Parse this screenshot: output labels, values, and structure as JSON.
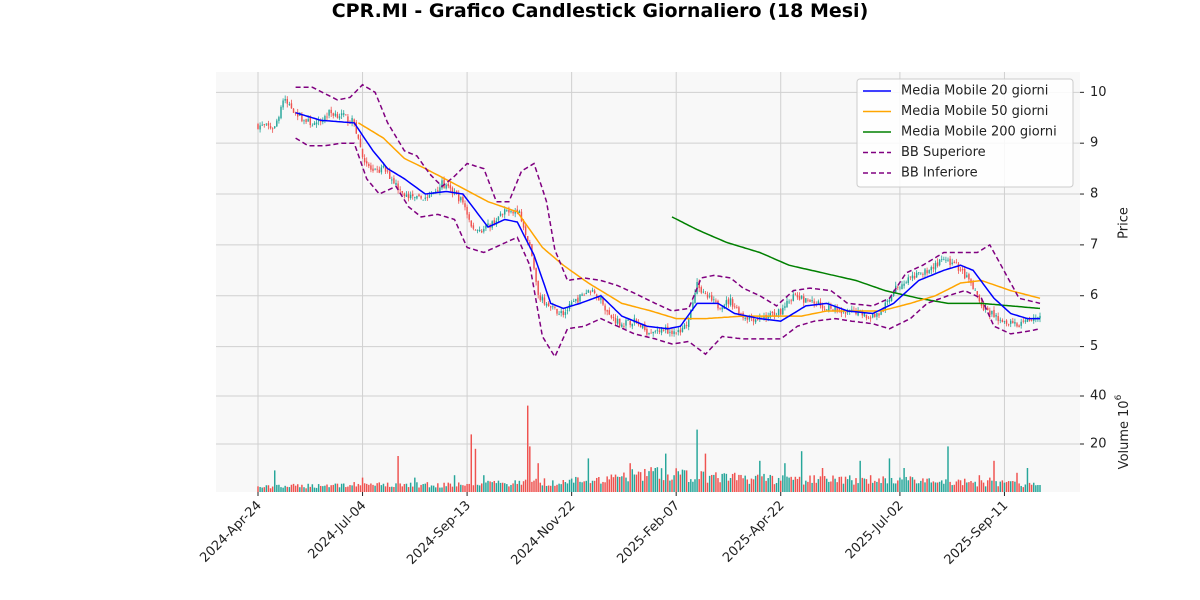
{
  "chart_data": {
    "type": "candlestick",
    "title": "CPR.MI - Grafico Candlestick Giornaliero (18 Mesi)",
    "price_axis": {
      "label": "Price",
      "ticks": [
        5,
        6,
        7,
        8,
        9,
        10
      ],
      "ylim": [
        4.5,
        10.4
      ]
    },
    "volume_axis": {
      "label": "Volume",
      "exponent": "6",
      "ticks": [
        20,
        40
      ],
      "ylim": [
        0,
        50
      ]
    },
    "x_ticks": [
      "2024-Apr-24",
      "2024-Jul-04",
      "2024-Sep-13",
      "2024-Nov-22",
      "2025-Feb-07",
      "2025-Apr-22",
      "2025-Jul-02",
      "2025-Sep-11"
    ],
    "x_tick_index": [
      0,
      50,
      100,
      150,
      200,
      250,
      307,
      357
    ],
    "n_bars": 375,
    "grid": true,
    "legend_position": "upper right",
    "colors": {
      "up": "#26a69a",
      "down": "#ef5350",
      "ma20": "#0000ff",
      "ma50": "#ffa500",
      "ma200": "#008000",
      "bb": "#800080"
    },
    "legend": [
      {
        "key": "ma20",
        "label": "Media Mobile 20 giorni",
        "style": "solid"
      },
      {
        "key": "ma50",
        "label": "Media Mobile 50 giorni",
        "style": "solid"
      },
      {
        "key": "ma200",
        "label": "Media Mobile 200 giorni",
        "style": "solid"
      },
      {
        "key": "bb_upper",
        "label": "BB Superiore",
        "style": "dashed"
      },
      {
        "key": "bb_lower",
        "label": "BB Inferiore",
        "style": "dashed"
      }
    ],
    "close_anchors": [
      [
        0,
        9.35
      ],
      [
        8,
        9.3
      ],
      [
        12,
        9.85
      ],
      [
        16,
        9.7
      ],
      [
        22,
        9.45
      ],
      [
        28,
        9.35
      ],
      [
        34,
        9.6
      ],
      [
        40,
        9.55
      ],
      [
        46,
        9.4
      ],
      [
        50,
        8.75
      ],
      [
        55,
        8.4
      ],
      [
        60,
        8.5
      ],
      [
        66,
        8.2
      ],
      [
        70,
        7.95
      ],
      [
        76,
        7.9
      ],
      [
        82,
        7.95
      ],
      [
        88,
        8.2
      ],
      [
        94,
        8.0
      ],
      [
        98,
        7.85
      ],
      [
        103,
        7.3
      ],
      [
        108,
        7.3
      ],
      [
        114,
        7.5
      ],
      [
        120,
        7.7
      ],
      [
        125,
        7.65
      ],
      [
        130,
        7.0
      ],
      [
        134,
        6.0
      ],
      [
        140,
        5.75
      ],
      [
        146,
        5.65
      ],
      [
        152,
        5.9
      ],
      [
        158,
        6.1
      ],
      [
        164,
        5.95
      ],
      [
        168,
        5.6
      ],
      [
        174,
        5.45
      ],
      [
        180,
        5.5
      ],
      [
        186,
        5.3
      ],
      [
        192,
        5.35
      ],
      [
        198,
        5.3
      ],
      [
        202,
        5.3
      ],
      [
        206,
        5.5
      ],
      [
        210,
        6.25
      ],
      [
        214,
        6.0
      ],
      [
        220,
        5.8
      ],
      [
        226,
        5.9
      ],
      [
        232,
        5.6
      ],
      [
        238,
        5.55
      ],
      [
        244,
        5.6
      ],
      [
        250,
        5.7
      ],
      [
        256,
        6.0
      ],
      [
        262,
        5.9
      ],
      [
        268,
        5.85
      ],
      [
        274,
        5.75
      ],
      [
        280,
        5.65
      ],
      [
        286,
        5.7
      ],
      [
        292,
        5.6
      ],
      [
        298,
        5.65
      ],
      [
        304,
        6.1
      ],
      [
        310,
        6.3
      ],
      [
        316,
        6.4
      ],
      [
        322,
        6.55
      ],
      [
        328,
        6.7
      ],
      [
        334,
        6.6
      ],
      [
        340,
        6.3
      ],
      [
        346,
        5.8
      ],
      [
        352,
        5.6
      ],
      [
        358,
        5.5
      ],
      [
        364,
        5.45
      ],
      [
        370,
        5.55
      ],
      [
        374,
        5.6
      ]
    ],
    "ma20_anchors": [
      [
        18,
        9.6
      ],
      [
        30,
        9.45
      ],
      [
        46,
        9.4
      ],
      [
        55,
        8.85
      ],
      [
        62,
        8.5
      ],
      [
        70,
        8.3
      ],
      [
        80,
        8.0
      ],
      [
        90,
        8.05
      ],
      [
        98,
        8.0
      ],
      [
        110,
        7.35
      ],
      [
        118,
        7.5
      ],
      [
        124,
        7.45
      ],
      [
        132,
        6.8
      ],
      [
        140,
        5.85
      ],
      [
        146,
        5.75
      ],
      [
        154,
        5.85
      ],
      [
        164,
        6.0
      ],
      [
        174,
        5.6
      ],
      [
        186,
        5.4
      ],
      [
        196,
        5.35
      ],
      [
        202,
        5.4
      ],
      [
        210,
        5.85
      ],
      [
        220,
        5.85
      ],
      [
        228,
        5.65
      ],
      [
        240,
        5.55
      ],
      [
        250,
        5.5
      ],
      [
        262,
        5.8
      ],
      [
        272,
        5.85
      ],
      [
        282,
        5.7
      ],
      [
        294,
        5.65
      ],
      [
        304,
        5.85
      ],
      [
        316,
        6.3
      ],
      [
        328,
        6.5
      ],
      [
        336,
        6.6
      ],
      [
        342,
        6.5
      ],
      [
        352,
        5.95
      ],
      [
        360,
        5.65
      ],
      [
        368,
        5.55
      ],
      [
        374,
        5.55
      ]
    ],
    "ma50_anchors": [
      [
        48,
        9.4
      ],
      [
        60,
        9.1
      ],
      [
        70,
        8.7
      ],
      [
        80,
        8.5
      ],
      [
        94,
        8.2
      ],
      [
        110,
        7.85
      ],
      [
        124,
        7.65
      ],
      [
        136,
        6.95
      ],
      [
        146,
        6.6
      ],
      [
        158,
        6.25
      ],
      [
        174,
        5.85
      ],
      [
        188,
        5.7
      ],
      [
        200,
        5.55
      ],
      [
        214,
        5.55
      ],
      [
        232,
        5.6
      ],
      [
        248,
        5.6
      ],
      [
        260,
        5.6
      ],
      [
        272,
        5.7
      ],
      [
        286,
        5.7
      ],
      [
        298,
        5.7
      ],
      [
        312,
        5.85
      ],
      [
        324,
        6.0
      ],
      [
        336,
        6.25
      ],
      [
        346,
        6.3
      ],
      [
        360,
        6.1
      ],
      [
        374,
        5.95
      ]
    ],
    "ma200_anchors": [
      [
        198,
        7.55
      ],
      [
        210,
        7.3
      ],
      [
        224,
        7.05
      ],
      [
        240,
        6.85
      ],
      [
        254,
        6.6
      ],
      [
        270,
        6.45
      ],
      [
        286,
        6.3
      ],
      [
        300,
        6.1
      ],
      [
        316,
        5.95
      ],
      [
        330,
        5.85
      ],
      [
        346,
        5.85
      ],
      [
        360,
        5.8
      ],
      [
        374,
        5.75
      ]
    ],
    "bb_upper_anchors": [
      [
        18,
        10.1
      ],
      [
        26,
        10.1
      ],
      [
        38,
        9.85
      ],
      [
        44,
        9.9
      ],
      [
        50,
        10.15
      ],
      [
        56,
        10.0
      ],
      [
        62,
        9.4
      ],
      [
        70,
        8.85
      ],
      [
        76,
        8.75
      ],
      [
        82,
        8.4
      ],
      [
        88,
        8.15
      ],
      [
        94,
        8.35
      ],
      [
        100,
        8.6
      ],
      [
        108,
        8.5
      ],
      [
        114,
        7.85
      ],
      [
        120,
        7.85
      ],
      [
        126,
        8.45
      ],
      [
        132,
        8.6
      ],
      [
        138,
        7.85
      ],
      [
        142,
        6.9
      ],
      [
        148,
        6.3
      ],
      [
        156,
        6.35
      ],
      [
        164,
        6.3
      ],
      [
        172,
        6.2
      ],
      [
        180,
        6.05
      ],
      [
        190,
        5.85
      ],
      [
        198,
        5.7
      ],
      [
        206,
        5.75
      ],
      [
        212,
        6.35
      ],
      [
        218,
        6.4
      ],
      [
        226,
        6.35
      ],
      [
        232,
        6.15
      ],
      [
        240,
        6.0
      ],
      [
        248,
        5.8
      ],
      [
        256,
        6.1
      ],
      [
        264,
        6.15
      ],
      [
        274,
        6.1
      ],
      [
        282,
        5.85
      ],
      [
        294,
        5.8
      ],
      [
        302,
        5.95
      ],
      [
        310,
        6.45
      ],
      [
        318,
        6.6
      ],
      [
        328,
        6.85
      ],
      [
        336,
        6.85
      ],
      [
        344,
        6.85
      ],
      [
        350,
        7.0
      ],
      [
        356,
        6.55
      ],
      [
        364,
        5.95
      ],
      [
        374,
        5.85
      ]
    ],
    "bb_lower_anchors": [
      [
        18,
        9.1
      ],
      [
        24,
        8.95
      ],
      [
        32,
        8.95
      ],
      [
        40,
        9.0
      ],
      [
        46,
        9.0
      ],
      [
        52,
        8.3
      ],
      [
        58,
        8.0
      ],
      [
        66,
        8.15
      ],
      [
        72,
        7.75
      ],
      [
        78,
        7.55
      ],
      [
        86,
        7.6
      ],
      [
        94,
        7.5
      ],
      [
        100,
        6.95
      ],
      [
        108,
        6.85
      ],
      [
        116,
        7.0
      ],
      [
        124,
        7.15
      ],
      [
        130,
        6.6
      ],
      [
        136,
        5.2
      ],
      [
        142,
        4.8
      ],
      [
        148,
        5.35
      ],
      [
        156,
        5.4
      ],
      [
        164,
        5.55
      ],
      [
        172,
        5.4
      ],
      [
        180,
        5.25
      ],
      [
        190,
        5.15
      ],
      [
        198,
        5.05
      ],
      [
        206,
        5.1
      ],
      [
        214,
        4.85
      ],
      [
        222,
        5.2
      ],
      [
        232,
        5.15
      ],
      [
        242,
        5.15
      ],
      [
        250,
        5.15
      ],
      [
        258,
        5.4
      ],
      [
        266,
        5.5
      ],
      [
        276,
        5.55
      ],
      [
        284,
        5.5
      ],
      [
        294,
        5.45
      ],
      [
        302,
        5.35
      ],
      [
        312,
        5.55
      ],
      [
        320,
        5.85
      ],
      [
        330,
        6.0
      ],
      [
        338,
        6.1
      ],
      [
        346,
        5.95
      ],
      [
        352,
        5.4
      ],
      [
        360,
        5.25
      ],
      [
        368,
        5.3
      ],
      [
        374,
        5.35
      ]
    ],
    "volume_levels": [
      [
        0,
        2
      ],
      [
        40,
        3
      ],
      [
        90,
        3
      ],
      [
        120,
        3.5
      ],
      [
        135,
        4
      ],
      [
        160,
        5
      ],
      [
        190,
        8
      ],
      [
        220,
        6
      ],
      [
        260,
        5
      ],
      [
        300,
        5
      ],
      [
        340,
        4
      ],
      [
        374,
        3
      ]
    ],
    "volume_spikes": [
      [
        8,
        9
      ],
      [
        50,
        6
      ],
      [
        67,
        15
      ],
      [
        75,
        6
      ],
      [
        94,
        7
      ],
      [
        102,
        24
      ],
      [
        104,
        18
      ],
      [
        108,
        7
      ],
      [
        129,
        36
      ],
      [
        130,
        19
      ],
      [
        134,
        12
      ],
      [
        146,
        5
      ],
      [
        158,
        14
      ],
      [
        178,
        12
      ],
      [
        190,
        10
      ],
      [
        195,
        16
      ],
      [
        199,
        7
      ],
      [
        205,
        9
      ],
      [
        210,
        26
      ],
      [
        214,
        16
      ],
      [
        240,
        13
      ],
      [
        252,
        12
      ],
      [
        260,
        17
      ],
      [
        270,
        10
      ],
      [
        288,
        13
      ],
      [
        293,
        7
      ],
      [
        302,
        14
      ],
      [
        309,
        10
      ],
      [
        330,
        19
      ],
      [
        345,
        7
      ],
      [
        350,
        6
      ],
      [
        352,
        13
      ],
      [
        363,
        8
      ],
      [
        368,
        10
      ]
    ]
  }
}
